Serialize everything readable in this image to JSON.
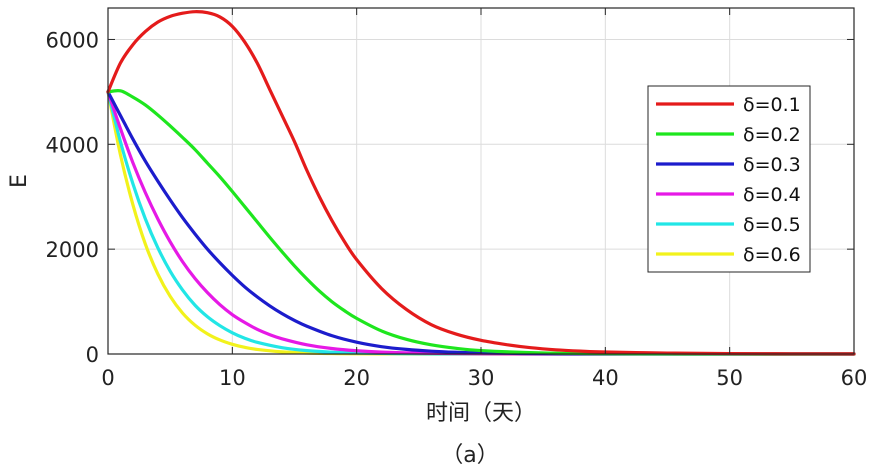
{
  "caption": "（a）",
  "chart_data": {
    "type": "line",
    "title": "",
    "xlabel": "时间（天）",
    "ylabel": "E",
    "xlim": [
      0,
      60
    ],
    "ylim": [
      0,
      6600
    ],
    "xticks": [
      0,
      10,
      20,
      30,
      40,
      50,
      60
    ],
    "yticks": [
      0,
      2000,
      4000,
      6000
    ],
    "grid": true,
    "legend_position": "right",
    "series": [
      {
        "name": "δ=0.1",
        "color": "#e41b1b",
        "x": [
          0,
          1,
          2,
          3,
          4,
          5,
          6,
          7,
          8,
          9,
          10,
          11,
          12,
          13,
          14,
          15,
          16,
          17,
          18,
          19,
          20,
          22,
          24,
          26,
          28,
          30,
          32,
          34,
          36,
          38,
          40,
          45,
          50,
          55,
          60
        ],
        "y": [
          5000,
          5550,
          5900,
          6150,
          6330,
          6440,
          6500,
          6530,
          6510,
          6430,
          6250,
          5950,
          5550,
          5050,
          4550,
          4050,
          3500,
          3000,
          2550,
          2150,
          1800,
          1250,
          850,
          560,
          380,
          260,
          180,
          120,
          80,
          55,
          38,
          18,
          8,
          4,
          2
        ]
      },
      {
        "name": "δ=0.2",
        "color": "#1ee61e",
        "x": [
          0,
          1,
          2,
          3,
          4,
          5,
          6,
          7,
          8,
          9,
          10,
          11,
          12,
          13,
          14,
          15,
          16,
          17,
          18,
          19,
          20,
          22,
          24,
          26,
          28,
          30,
          35,
          40,
          50,
          60
        ],
        "y": [
          5000,
          5020,
          4900,
          4750,
          4560,
          4350,
          4130,
          3900,
          3640,
          3380,
          3100,
          2810,
          2520,
          2230,
          1950,
          1680,
          1430,
          1200,
          1000,
          830,
          680,
          440,
          280,
          175,
          108,
          66,
          20,
          6,
          1,
          0
        ]
      },
      {
        "name": "δ=0.3",
        "color": "#1c1ccc",
        "x": [
          0,
          1,
          2,
          3,
          4,
          5,
          6,
          7,
          8,
          9,
          10,
          11,
          12,
          13,
          14,
          15,
          16,
          18,
          20,
          22,
          24,
          26,
          28,
          30,
          35,
          40,
          50,
          60
        ],
        "y": [
          5000,
          4550,
          4100,
          3680,
          3300,
          2940,
          2600,
          2290,
          2000,
          1740,
          1500,
          1280,
          1090,
          920,
          770,
          640,
          530,
          350,
          225,
          140,
          88,
          54,
          33,
          20,
          6,
          2,
          0,
          0
        ]
      },
      {
        "name": "δ=0.4",
        "color": "#e619e6",
        "x": [
          0,
          1,
          2,
          3,
          4,
          5,
          6,
          7,
          8,
          9,
          10,
          11,
          12,
          13,
          14,
          16,
          18,
          20,
          22,
          25,
          30,
          40,
          50,
          60
        ],
        "y": [
          5000,
          4300,
          3650,
          3080,
          2580,
          2140,
          1760,
          1440,
          1170,
          940,
          750,
          600,
          470,
          370,
          290,
          175,
          105,
          62,
          36,
          16,
          4,
          0,
          0,
          0
        ]
      },
      {
        "name": "δ=0.5",
        "color": "#22e6e6",
        "x": [
          0,
          1,
          2,
          3,
          4,
          5,
          6,
          7,
          8,
          9,
          10,
          11,
          12,
          14,
          16,
          18,
          20,
          25,
          30,
          40,
          60
        ],
        "y": [
          5000,
          4050,
          3250,
          2580,
          2030,
          1580,
          1220,
          930,
          710,
          540,
          405,
          300,
          222,
          120,
          64,
          34,
          18,
          4,
          1,
          0,
          0
        ]
      },
      {
        "name": "δ=0.6",
        "color": "#f2f21c",
        "x": [
          0,
          1,
          2,
          3,
          4,
          5,
          6,
          7,
          8,
          9,
          10,
          11,
          12,
          14,
          16,
          18,
          20,
          25,
          30,
          40,
          60
        ],
        "y": [
          5000,
          3800,
          2850,
          2100,
          1530,
          1100,
          780,
          550,
          385,
          268,
          185,
          127,
          87,
          40,
          18,
          8,
          4,
          0,
          0,
          0,
          0
        ]
      }
    ]
  }
}
